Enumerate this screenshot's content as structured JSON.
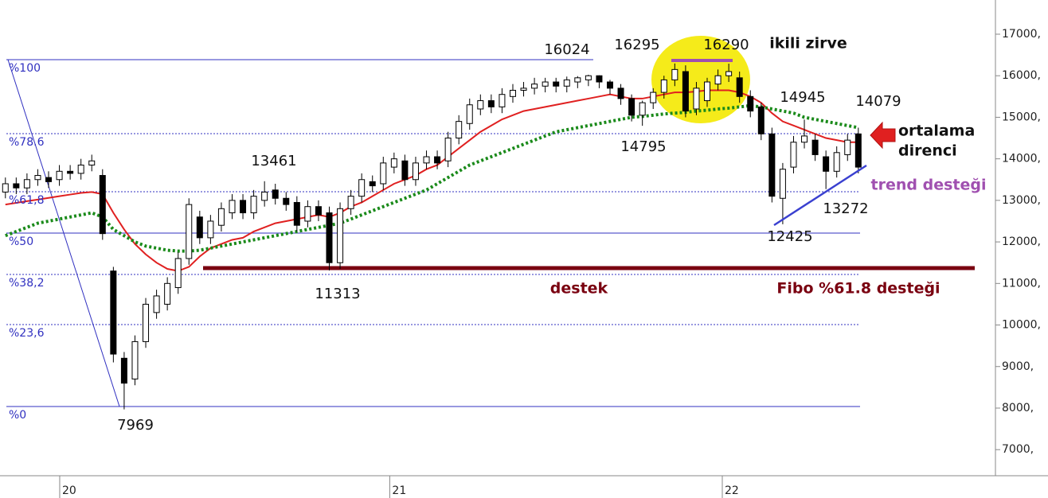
{
  "chart_data": {
    "type": "candlestick",
    "x": [
      0,
      1,
      2,
      3,
      4,
      5,
      6,
      7,
      8,
      9,
      10,
      11,
      12,
      13,
      14,
      15,
      16,
      17,
      18,
      19,
      20,
      21,
      22,
      23,
      24,
      25,
      26,
      27,
      28,
      29,
      30,
      31,
      32,
      33,
      34,
      35,
      36,
      37,
      38,
      39,
      40,
      41,
      42,
      43,
      44,
      45,
      46,
      47,
      48,
      49,
      50,
      51,
      52,
      53,
      54,
      55,
      56,
      57,
      58,
      59,
      60,
      61,
      62,
      63,
      64,
      65,
      66,
      67,
      68,
      69,
      70,
      71,
      72,
      73,
      74,
      75,
      76,
      77,
      78,
      79
    ],
    "open": [
      13200,
      13400,
      13300,
      13500,
      13550,
      13500,
      13700,
      13650,
      13850,
      13600,
      11300,
      9200,
      8700,
      9600,
      10300,
      10500,
      10900,
      11600,
      12600,
      12100,
      12400,
      12700,
      13000,
      12700,
      13000,
      13250,
      13050,
      12950,
      12500,
      12850,
      12700,
      11500,
      12800,
      13100,
      13450,
      13400,
      13800,
      13950,
      13500,
      13900,
      14050,
      13950,
      14500,
      14850,
      15200,
      15400,
      15250,
      15500,
      15650,
      15700,
      15750,
      15850,
      15750,
      15850,
      15900,
      16000,
      15850,
      15700,
      15450,
      15050,
      15350,
      15600,
      15900,
      16100,
      15200,
      15400,
      15800,
      16000,
      15950,
      15500,
      15250,
      14600,
      13050,
      13800,
      14400,
      14450,
      14050,
      13700,
      14100,
      14600
    ],
    "high": [
      13550,
      13550,
      13650,
      13750,
      13700,
      13850,
      13850,
      14000,
      14100,
      13750,
      11400,
      9350,
      9750,
      10650,
      10850,
      11150,
      11750,
      13050,
      12750,
      12650,
      12950,
      13150,
      13150,
      13250,
      13461,
      13400,
      13200,
      13100,
      13000,
      13000,
      12850,
      12950,
      13250,
      13650,
      13600,
      14050,
      14150,
      14100,
      14050,
      14200,
      14200,
      14650,
      15050,
      15450,
      15550,
      15550,
      15700,
      15800,
      15850,
      15950,
      15950,
      15950,
      15980,
      15990,
      16024,
      16010,
      15900,
      15800,
      15550,
      15400,
      15700,
      16000,
      16295,
      16250,
      15850,
      15950,
      16150,
      16290,
      16100,
      15650,
      15350,
      14750,
      13900,
      14550,
      14945,
      14600,
      14200,
      14300,
      14600,
      14750
    ],
    "low": [
      13050,
      13150,
      13150,
      13350,
      13300,
      13350,
      13500,
      13500,
      13700,
      12050,
      9100,
      7969,
      8550,
      9450,
      10150,
      10350,
      10750,
      11450,
      11950,
      11950,
      12250,
      12550,
      12550,
      12550,
      12850,
      12900,
      12750,
      12250,
      12350,
      12500,
      11313,
      11350,
      12650,
      12950,
      13200,
      13250,
      13650,
      13350,
      13350,
      13750,
      13750,
      13800,
      14350,
      14700,
      15050,
      15100,
      15100,
      15350,
      15500,
      15550,
      15600,
      15600,
      15600,
      15700,
      15750,
      15700,
      15550,
      15300,
      14900,
      14795,
      15200,
      15450,
      15750,
      15000,
      15050,
      15250,
      15650,
      15850,
      15350,
      15000,
      14450,
      12950,
      12425,
      13650,
      14250,
      13950,
      13272,
      13550,
      13950,
      13650
    ],
    "close": [
      13400,
      13300,
      13500,
      13600,
      13450,
      13700,
      13650,
      13850,
      13950,
      12200,
      9300,
      8600,
      9600,
      10500,
      10700,
      11000,
      11600,
      12900,
      12100,
      12500,
      12800,
      13000,
      12700,
      13100,
      13200,
      13050,
      12900,
      12400,
      12850,
      12650,
      11500,
      12800,
      13100,
      13500,
      13350,
      13900,
      14000,
      13500,
      13900,
      14050,
      13900,
      14500,
      14900,
      15300,
      15400,
      15250,
      15550,
      15650,
      15700,
      15800,
      15850,
      15750,
      15900,
      15950,
      16000,
      15850,
      15700,
      15450,
      15050,
      15350,
      15600,
      15900,
      16150,
      15150,
      15700,
      15850,
      16000,
      16100,
      15500,
      15150,
      14600,
      13100,
      13750,
      14400,
      14550,
      14100,
      13700,
      14150,
      14450,
      13800
    ],
    "lines": [
      {
        "color": "#e02020",
        "style": "solid",
        "values": [
          12900,
          12940,
          12980,
          13020,
          13060,
          13100,
          13140,
          13180,
          13200,
          13150,
          12700,
          12300,
          11950,
          11700,
          11500,
          11350,
          11300,
          11400,
          11650,
          11850,
          11950,
          12050,
          12100,
          12250,
          12350,
          12450,
          12500,
          12550,
          12600,
          12650,
          12600,
          12700,
          12850,
          12950,
          13100,
          13250,
          13400,
          13500,
          13600,
          13750,
          13850,
          14050,
          14250,
          14450,
          14650,
          14800,
          14950,
          15050,
          15150,
          15200,
          15250,
          15300,
          15350,
          15400,
          15450,
          15500,
          15550,
          15500,
          15450,
          15450,
          15500,
          15550,
          15600,
          15600,
          15620,
          15650,
          15650,
          15650,
          15600,
          15500,
          15350,
          15100,
          14900,
          14800,
          14700,
          14600,
          14500,
          14450,
          14400,
          14400
        ]
      },
      {
        "color": "#1a8a1a",
        "style": "dotted",
        "values": [
          12150,
          12250,
          12350,
          12450,
          12500,
          12550,
          12600,
          12650,
          12700,
          12600,
          12300,
          12150,
          12000,
          11900,
          11850,
          11800,
          11780,
          11780,
          11800,
          11850,
          11900,
          11950,
          12000,
          12050,
          12100,
          12150,
          12200,
          12250,
          12300,
          12350,
          12400,
          12450,
          12550,
          12650,
          12750,
          12850,
          12950,
          13050,
          13150,
          13250,
          13400,
          13550,
          13700,
          13850,
          13950,
          14050,
          14150,
          14250,
          14350,
          14450,
          14550,
          14650,
          14700,
          14750,
          14800,
          14850,
          14900,
          14950,
          15000,
          15020,
          15050,
          15080,
          15100,
          15120,
          15150,
          15170,
          15200,
          15220,
          15250,
          15280,
          15250,
          15200,
          15150,
          15100,
          15000,
          14950,
          14900,
          14850,
          14800,
          14750
        ]
      }
    ],
    "xlim": [
      -0.5,
      91.7
    ],
    "xticks": [
      {
        "value": 5.03,
        "label": "20"
      },
      {
        "value": 35.6,
        "label": "21"
      },
      {
        "value": 66.4,
        "label": "22"
      }
    ],
    "ylim": [
      6372,
      17823
    ],
    "yticks": [
      {
        "value": 7000,
        "label": "7000,"
      },
      {
        "value": 8000,
        "label": "8000,"
      },
      {
        "value": 9000,
        "label": "9000,"
      },
      {
        "value": 10000,
        "label": "10000,"
      },
      {
        "value": 11000,
        "label": "11000,"
      },
      {
        "value": 12000,
        "label": "12000,"
      },
      {
        "value": 13000,
        "label": "13000,"
      },
      {
        "value": 14000,
        "label": "14000,"
      },
      {
        "value": 15000,
        "label": "15000,"
      },
      {
        "value": 16000,
        "label": "16000,"
      },
      {
        "value": 17000,
        "label": "17000,"
      }
    ],
    "fib_levels": [
      {
        "label": "%100",
        "price": 16387
      },
      {
        "label": "%78.6",
        "price": 14606
      },
      {
        "label": "%61,8",
        "price": 13208
      },
      {
        "label": "%50",
        "price": 12213
      },
      {
        "label": "%38,2",
        "price": 11217
      },
      {
        "label": "%23,6",
        "price": 10010
      },
      {
        "label": "%0",
        "price": 8038
      }
    ],
    "annotations": [
      "16024",
      "16295",
      "16290",
      "ikili zirve",
      "13461",
      "14795",
      "14945",
      "14079",
      "ortalama",
      "direnci",
      "trend desteği",
      "13272",
      "12425",
      "11313",
      "destek",
      "Fibo %61.8 desteği",
      "7969"
    ]
  }
}
